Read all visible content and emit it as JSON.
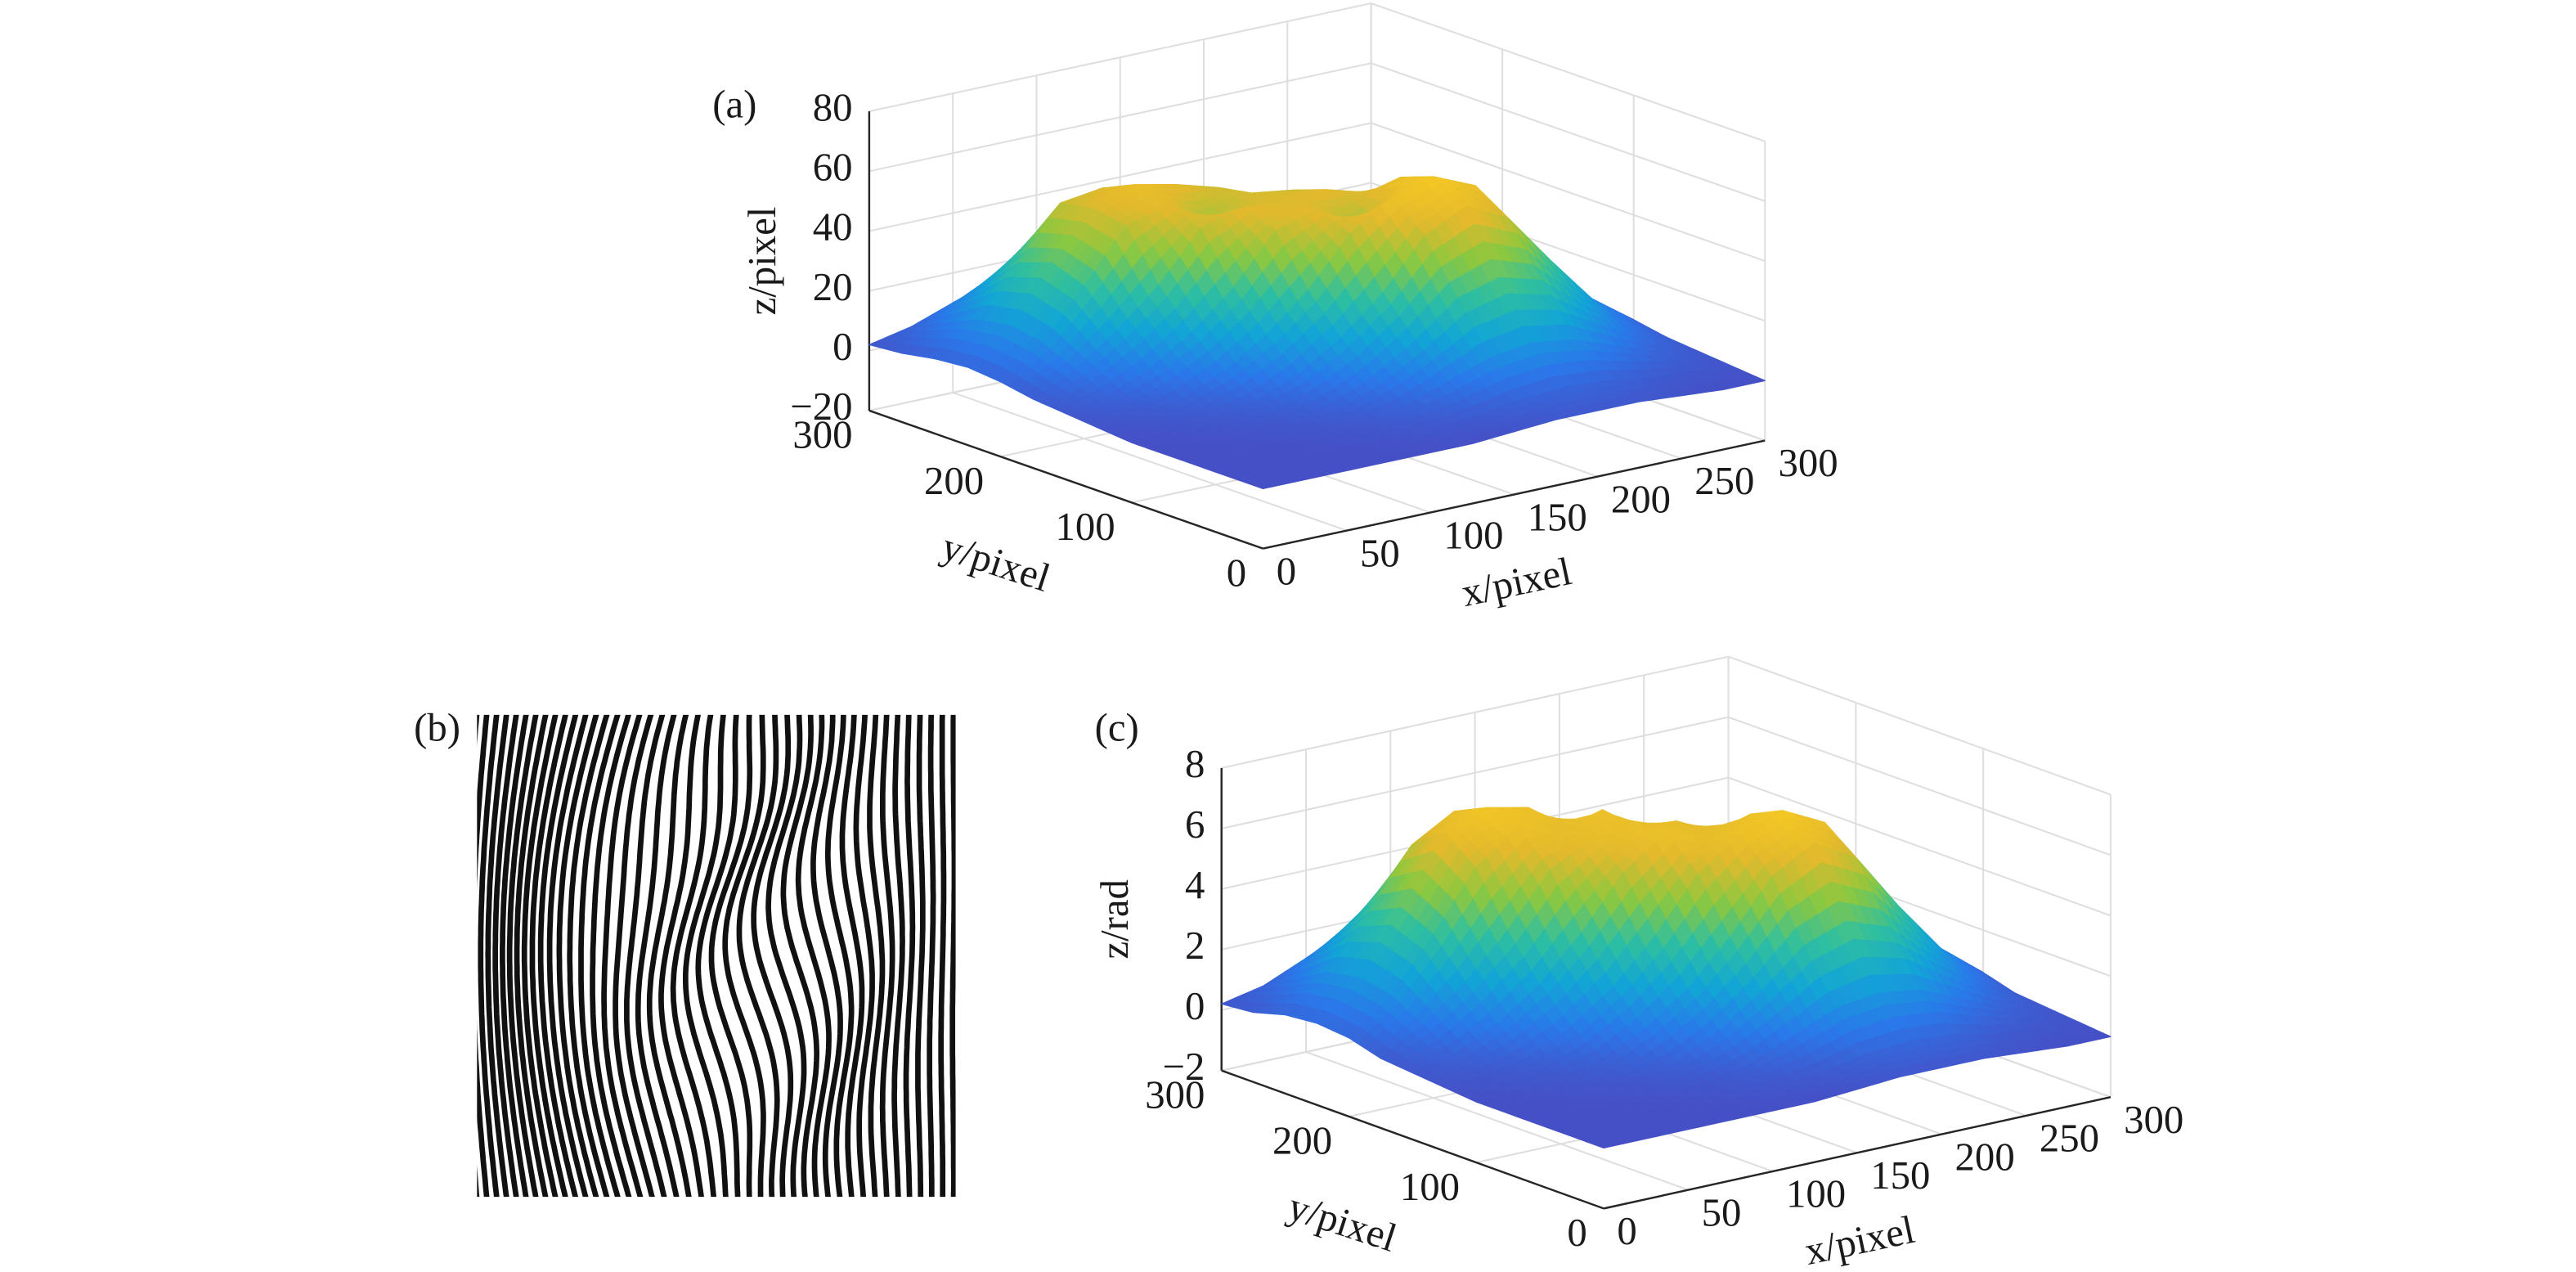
{
  "chart_data": [
    {
      "type": "surface",
      "label": "(a)",
      "x_label": "x/pixel",
      "y_label": "y/pixel",
      "z_label": "z/pixel",
      "x": [
        0,
        25,
        50,
        75,
        100,
        125,
        150,
        175,
        200,
        225,
        250,
        275,
        300
      ],
      "y": [
        0,
        25,
        50,
        75,
        100,
        125,
        150,
        175,
        200,
        225,
        250,
        275,
        300
      ],
      "z": [
        [
          0,
          0,
          0,
          0,
          0,
          0,
          1,
          2,
          2,
          2,
          1,
          0,
          0
        ],
        [
          0,
          0,
          0,
          0,
          1,
          2,
          3,
          5,
          6,
          5,
          3,
          2,
          1
        ],
        [
          0,
          0,
          0,
          1,
          2,
          5,
          10,
          15,
          17,
          15,
          10,
          5,
          2
        ],
        [
          0,
          0,
          1,
          2,
          5,
          11,
          20,
          31,
          35,
          31,
          20,
          10,
          3
        ],
        [
          0,
          1,
          2,
          5,
          11,
          20,
          32,
          48,
          55,
          48,
          31,
          15,
          5
        ],
        [
          1,
          2,
          5,
          11,
          20,
          32,
          48,
          57,
          61,
          55,
          35,
          17,
          6
        ],
        [
          2,
          5,
          11,
          20,
          32,
          48,
          52,
          44,
          57,
          48,
          31,
          15,
          5
        ],
        [
          3,
          10,
          20,
          32,
          48,
          52,
          50,
          52,
          48,
          32,
          20,
          10,
          3
        ],
        [
          5,
          15,
          31,
          48,
          52,
          44,
          50,
          48,
          32,
          20,
          11,
          5,
          2
        ],
        [
          6,
          17,
          35,
          50,
          55,
          52,
          48,
          32,
          20,
          11,
          5,
          2,
          1
        ],
        [
          5,
          15,
          31,
          48,
          50,
          48,
          32,
          20,
          11,
          5,
          2,
          1,
          0
        ],
        [
          3,
          10,
          20,
          31,
          35,
          31,
          20,
          11,
          5,
          2,
          1,
          0,
          0
        ],
        [
          2,
          5,
          10,
          15,
          17,
          15,
          10,
          5,
          2,
          1,
          0,
          0,
          0
        ]
      ],
      "xlim": [
        0,
        300
      ],
      "ylim": [
        0,
        300
      ],
      "zlim": [
        -20,
        80
      ],
      "xticks": [
        0,
        50,
        100,
        150,
        200,
        250,
        300
      ],
      "yticks": [
        0,
        100,
        200,
        300
      ],
      "zticks": [
        {
          "value": -20,
          "label": "−20"
        },
        0,
        20,
        40,
        60,
        80
      ],
      "grid": true,
      "colormap": [
        "#4650c6",
        "#2a78ea",
        "#12a5d6",
        "#2fbfa0",
        "#8cc83f",
        "#e2b92d",
        "#f5c824"
      ]
    },
    {
      "type": "surface",
      "label": "(c)",
      "x_label": "x/pixel",
      "y_label": "y/pixel",
      "z_label": "z/rad",
      "x": [
        0,
        25,
        50,
        75,
        100,
        125,
        150,
        175,
        200,
        225,
        250,
        275,
        300
      ],
      "y": [
        0,
        25,
        50,
        75,
        100,
        125,
        150,
        175,
        200,
        225,
        250,
        275,
        300
      ],
      "z": [
        [
          0,
          0,
          0,
          0,
          0,
          0,
          0.1,
          0.2,
          0.2,
          0.2,
          0.1,
          0,
          0
        ],
        [
          0,
          0,
          0,
          0,
          0.1,
          0.2,
          0.3,
          0.6,
          0.7,
          0.6,
          0.3,
          0.2,
          0.1
        ],
        [
          0,
          0,
          0,
          0.1,
          0.2,
          0.5,
          1.1,
          1.7,
          1.9,
          1.7,
          1.1,
          0.5,
          0.2
        ],
        [
          0,
          0,
          0.1,
          0.2,
          0.5,
          1.2,
          2.2,
          3.4,
          3.9,
          3.4,
          2.2,
          1.1,
          0.3
        ],
        [
          0,
          0.1,
          0.2,
          0.5,
          1.2,
          2.2,
          3.6,
          5.3,
          6.1,
          5.3,
          3.4,
          1.7,
          0.6
        ],
        [
          0.1,
          0.2,
          0.5,
          1.2,
          2.2,
          3.6,
          5.3,
          6.3,
          6.8,
          6.1,
          3.9,
          1.9,
          0.7
        ],
        [
          0.2,
          0.5,
          1.2,
          2.2,
          3.6,
          5.3,
          6.3,
          5.9,
          6.3,
          5.3,
          3.4,
          1.7,
          0.6
        ],
        [
          0.3,
          1.1,
          2.2,
          3.6,
          5.3,
          6.0,
          6.1,
          6.0,
          5.3,
          3.6,
          2.2,
          1.1,
          0.3
        ],
        [
          0.6,
          1.7,
          3.4,
          5.3,
          6.3,
          5.9,
          6.3,
          5.3,
          3.6,
          2.2,
          1.2,
          0.5,
          0.2
        ],
        [
          0.7,
          1.9,
          3.9,
          6.1,
          6.6,
          6.3,
          5.3,
          3.6,
          2.2,
          1.2,
          0.5,
          0.2,
          0.1
        ],
        [
          0.6,
          1.7,
          3.4,
          5.3,
          6.1,
          5.3,
          3.6,
          2.2,
          1.2,
          0.5,
          0.2,
          0.1,
          0
        ],
        [
          0.3,
          1.1,
          2.2,
          3.4,
          3.9,
          3.4,
          2.2,
          1.2,
          0.5,
          0.2,
          0.1,
          0,
          0
        ],
        [
          0.2,
          0.5,
          1.1,
          1.7,
          1.9,
          1.7,
          1.1,
          0.5,
          0.2,
          0.1,
          0,
          0,
          0
        ]
      ],
      "xlim": [
        0,
        300
      ],
      "ylim": [
        0,
        300
      ],
      "zlim": [
        -2,
        8
      ],
      "xticks": [
        0,
        50,
        100,
        150,
        200,
        250,
        300
      ],
      "yticks": [
        0,
        100,
        200,
        300
      ],
      "zticks": [
        {
          "value": -2,
          "label": "−2"
        },
        0,
        2,
        4,
        6,
        8
      ],
      "grid": true,
      "colormap": [
        "#4650c6",
        "#2a78ea",
        "#12a5d6",
        "#2fbfa0",
        "#8cc83f",
        "#e2b92d",
        "#f5c824"
      ]
    }
  ],
  "fringe_image": {
    "label": "(b)"
  }
}
